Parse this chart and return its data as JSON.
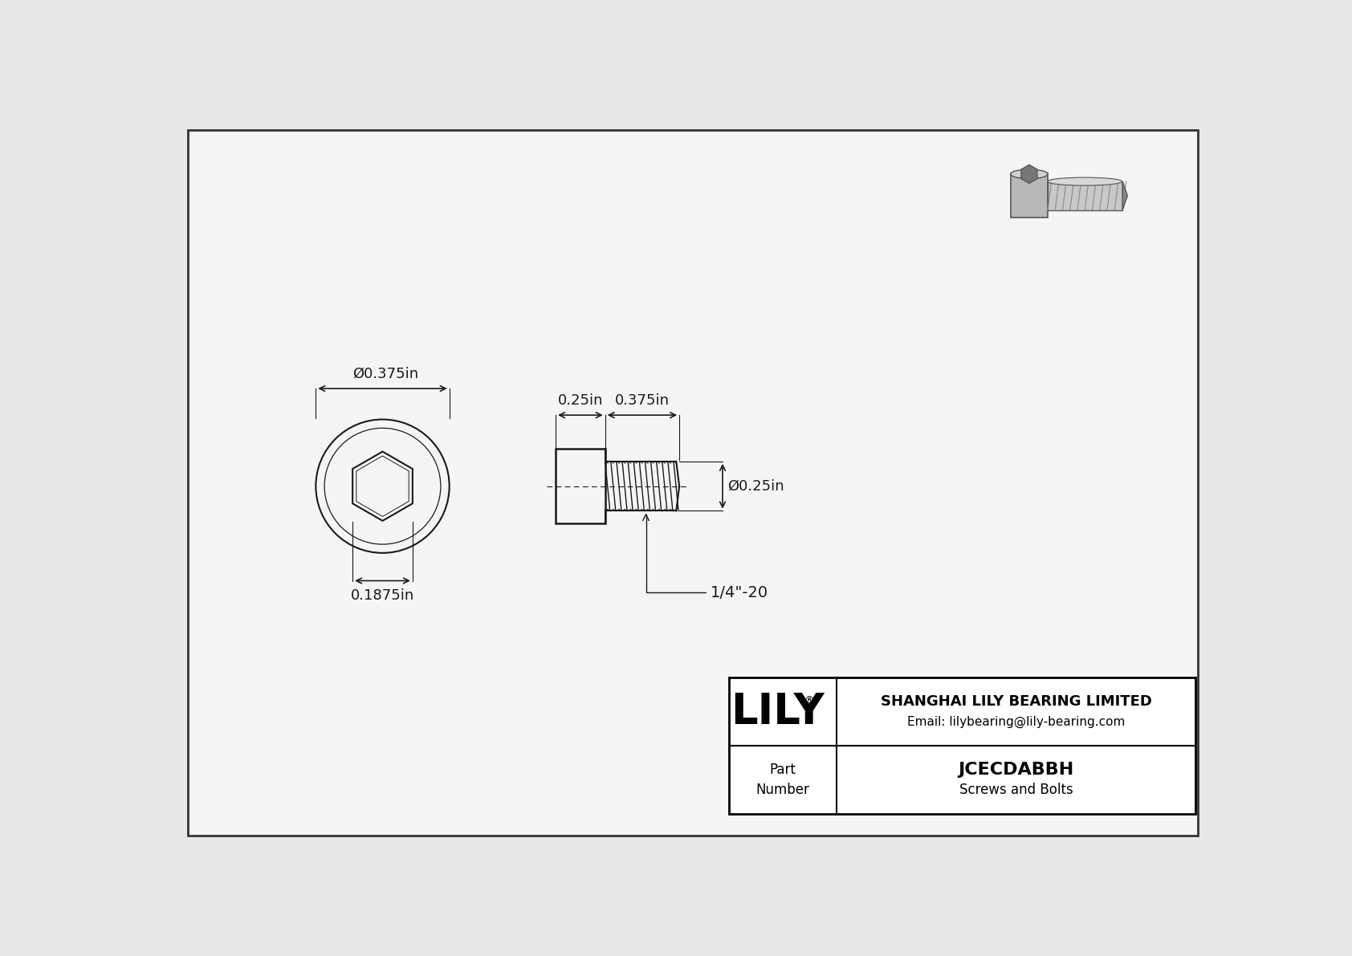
{
  "bg_color": "#e8e8e8",
  "drawing_bg": "#f5f5f5",
  "border_color": "#555555",
  "line_color": "#1a1a1a",
  "title": "JCECDABBH",
  "subtitle": "Screws and Bolts",
  "company": "SHANGHAI LILY BEARING LIMITED",
  "email": "Email: lilybearing@lily-bearing.com",
  "part_label": "Part\nNumber",
  "dim_head_diameter": "Ø0.375in",
  "dim_hex_width": "0.1875in",
  "dim_head_length": "0.25in",
  "dim_shank_length": "0.375in",
  "dim_shank_diameter": "Ø0.25in",
  "dim_thread": "1/4\"-20",
  "font_size_dim": 13,
  "font_size_title": 16,
  "font_size_logo": 38,
  "font_size_company": 13,
  "font_size_email": 11,
  "font_size_part": 12
}
